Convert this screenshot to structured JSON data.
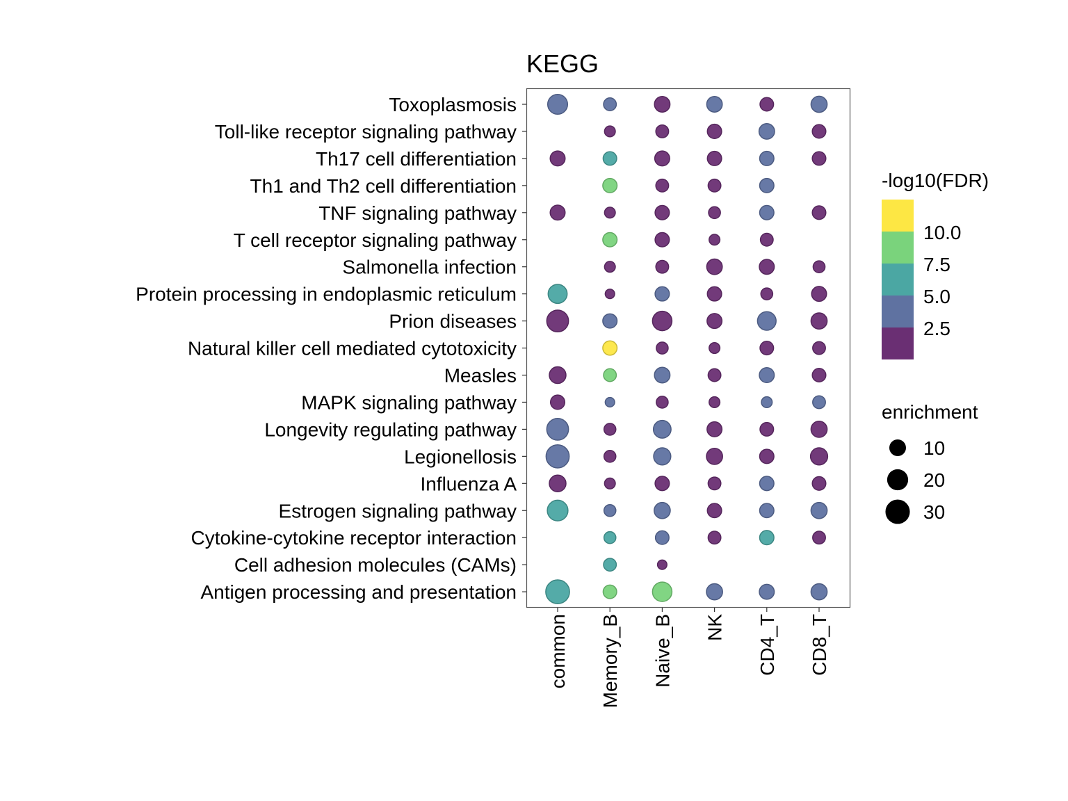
{
  "chart_data": {
    "type": "scatter",
    "subtype": "dot-plot",
    "title": "KEGG",
    "xlabel": "",
    "ylabel": "",
    "grid": false,
    "categories_x": [
      "common",
      "Memory_B",
      "Naive_B",
      "NK",
      "CD4_T",
      "CD8_T"
    ],
    "categories_y": [
      "Toxoplasmosis",
      "Toll-like receptor signaling pathway",
      "Th17 cell differentiation",
      "Th1 and Th2 cell differentiation",
      "TNF signaling pathway",
      "T cell receptor signaling pathway",
      "Salmonella infection",
      "Protein processing in endoplasmic reticulum",
      "Prion diseases",
      "Natural killer cell mediated cytotoxicity",
      "Measles",
      "MAPK signaling pathway",
      "Longevity regulating pathway",
      "Legionellosis",
      "Influenza A",
      "Estrogen signaling pathway",
      "Cytokine-cytokine receptor interaction",
      "Cell adhesion molecules (CAMs)",
      "Antigen processing and presentation"
    ],
    "points": [
      {
        "y": "Toxoplasmosis",
        "x": "common",
        "enrichment": 17,
        "neglog10FDR": 3.0
      },
      {
        "y": "Toxoplasmosis",
        "x": "Memory_B",
        "enrichment": 4,
        "neglog10FDR": 3.0
      },
      {
        "y": "Toxoplasmosis",
        "x": "Naive_B",
        "enrichment": 8,
        "neglog10FDR": 1.5
      },
      {
        "y": "Toxoplasmosis",
        "x": "NK",
        "enrichment": 8,
        "neglog10FDR": 3.0
      },
      {
        "y": "Toxoplasmosis",
        "x": "CD4_T",
        "enrichment": 5,
        "neglog10FDR": 1.5
      },
      {
        "y": "Toxoplasmosis",
        "x": "CD8_T",
        "enrichment": 9,
        "neglog10FDR": 3.0
      },
      {
        "y": "Toll-like receptor signaling pathway",
        "x": "Memory_B",
        "enrichment": 2,
        "neglog10FDR": 1.5
      },
      {
        "y": "Toll-like receptor signaling pathway",
        "x": "Naive_B",
        "enrichment": 4,
        "neglog10FDR": 1.5
      },
      {
        "y": "Toll-like receptor signaling pathway",
        "x": "NK",
        "enrichment": 6,
        "neglog10FDR": 1.5
      },
      {
        "y": "Toll-like receptor signaling pathway",
        "x": "CD4_T",
        "enrichment": 8,
        "neglog10FDR": 3.0
      },
      {
        "y": "Toll-like receptor signaling pathway",
        "x": "CD8_T",
        "enrichment": 5,
        "neglog10FDR": 1.5
      },
      {
        "y": "Th17 cell differentiation",
        "x": "common",
        "enrichment": 7,
        "neglog10FDR": 1.5
      },
      {
        "y": "Th17 cell differentiation",
        "x": "Memory_B",
        "enrichment": 5,
        "neglog10FDR": 5.5
      },
      {
        "y": "Th17 cell differentiation",
        "x": "Naive_B",
        "enrichment": 7,
        "neglog10FDR": 1.5
      },
      {
        "y": "Th17 cell differentiation",
        "x": "NK",
        "enrichment": 6,
        "neglog10FDR": 1.5
      },
      {
        "y": "Th17 cell differentiation",
        "x": "CD4_T",
        "enrichment": 6,
        "neglog10FDR": 3.0
      },
      {
        "y": "Th17 cell differentiation",
        "x": "CD8_T",
        "enrichment": 5,
        "neglog10FDR": 1.5
      },
      {
        "y": "Th1 and Th2 cell differentiation",
        "x": "Memory_B",
        "enrichment": 6,
        "neglog10FDR": 8.5
      },
      {
        "y": "Th1 and Th2 cell differentiation",
        "x": "Naive_B",
        "enrichment": 4,
        "neglog10FDR": 1.5
      },
      {
        "y": "Th1 and Th2 cell differentiation",
        "x": "NK",
        "enrichment": 4,
        "neglog10FDR": 1.5
      },
      {
        "y": "Th1 and Th2 cell differentiation",
        "x": "CD4_T",
        "enrichment": 6,
        "neglog10FDR": 3.0
      },
      {
        "y": "TNF signaling pathway",
        "x": "common",
        "enrichment": 7,
        "neglog10FDR": 1.5
      },
      {
        "y": "TNF signaling pathway",
        "x": "Memory_B",
        "enrichment": 2,
        "neglog10FDR": 1.5
      },
      {
        "y": "TNF signaling pathway",
        "x": "Naive_B",
        "enrichment": 6,
        "neglog10FDR": 1.5
      },
      {
        "y": "TNF signaling pathway",
        "x": "NK",
        "enrichment": 3,
        "neglog10FDR": 1.5
      },
      {
        "y": "TNF signaling pathway",
        "x": "CD4_T",
        "enrichment": 6,
        "neglog10FDR": 3.0
      },
      {
        "y": "TNF signaling pathway",
        "x": "CD8_T",
        "enrichment": 5,
        "neglog10FDR": 1.5
      },
      {
        "y": "T cell receptor signaling pathway",
        "x": "Memory_B",
        "enrichment": 6,
        "neglog10FDR": 8.5
      },
      {
        "y": "T cell receptor signaling pathway",
        "x": "Naive_B",
        "enrichment": 6,
        "neglog10FDR": 1.5
      },
      {
        "y": "T cell receptor signaling pathway",
        "x": "NK",
        "enrichment": 2,
        "neglog10FDR": 1.5
      },
      {
        "y": "T cell receptor signaling pathway",
        "x": "CD4_T",
        "enrichment": 4,
        "neglog10FDR": 1.5
      },
      {
        "y": "Salmonella infection",
        "x": "Memory_B",
        "enrichment": 2,
        "neglog10FDR": 1.5
      },
      {
        "y": "Salmonella infection",
        "x": "Naive_B",
        "enrichment": 4,
        "neglog10FDR": 1.5
      },
      {
        "y": "Salmonella infection",
        "x": "NK",
        "enrichment": 8,
        "neglog10FDR": 1.5
      },
      {
        "y": "Salmonella infection",
        "x": "CD4_T",
        "enrichment": 7,
        "neglog10FDR": 1.5
      },
      {
        "y": "Salmonella infection",
        "x": "CD8_T",
        "enrichment": 3,
        "neglog10FDR": 1.5
      },
      {
        "y": "Protein processing in endoplasmic reticulum",
        "x": "common",
        "enrichment": 15,
        "neglog10FDR": 5.5
      },
      {
        "y": "Protein processing in endoplasmic reticulum",
        "x": "Memory_B",
        "enrichment": 1,
        "neglog10FDR": 1.5
      },
      {
        "y": "Protein processing in endoplasmic reticulum",
        "x": "Naive_B",
        "enrichment": 6,
        "neglog10FDR": 3.0
      },
      {
        "y": "Protein processing in endoplasmic reticulum",
        "x": "NK",
        "enrichment": 6,
        "neglog10FDR": 1.5
      },
      {
        "y": "Protein processing in endoplasmic reticulum",
        "x": "CD4_T",
        "enrichment": 3,
        "neglog10FDR": 1.5
      },
      {
        "y": "Protein processing in endoplasmic reticulum",
        "x": "CD8_T",
        "enrichment": 7,
        "neglog10FDR": 1.5
      },
      {
        "y": "Prion diseases",
        "x": "common",
        "enrichment": 22,
        "neglog10FDR": 1.5
      },
      {
        "y": "Prion diseases",
        "x": "Memory_B",
        "enrichment": 6,
        "neglog10FDR": 3.0
      },
      {
        "y": "Prion diseases",
        "x": "Naive_B",
        "enrichment": 16,
        "neglog10FDR": 1.5
      },
      {
        "y": "Prion diseases",
        "x": "NK",
        "enrichment": 7,
        "neglog10FDR": 1.5
      },
      {
        "y": "Prion diseases",
        "x": "CD4_T",
        "enrichment": 14,
        "neglog10FDR": 3.0
      },
      {
        "y": "Prion diseases",
        "x": "CD8_T",
        "enrichment": 9,
        "neglog10FDR": 1.5
      },
      {
        "y": "Natural killer cell mediated cytotoxicity",
        "x": "Memory_B",
        "enrichment": 6,
        "neglog10FDR": 11.0
      },
      {
        "y": "Natural killer cell mediated cytotoxicity",
        "x": "Naive_B",
        "enrichment": 3,
        "neglog10FDR": 1.5
      },
      {
        "y": "Natural killer cell mediated cytotoxicity",
        "x": "NK",
        "enrichment": 2,
        "neglog10FDR": 1.5
      },
      {
        "y": "Natural killer cell mediated cytotoxicity",
        "x": "CD4_T",
        "enrichment": 5,
        "neglog10FDR": 1.5
      },
      {
        "y": "Natural killer cell mediated cytotoxicity",
        "x": "CD8_T",
        "enrichment": 4,
        "neglog10FDR": 1.5
      },
      {
        "y": "Measles",
        "x": "common",
        "enrichment": 10,
        "neglog10FDR": 1.5
      },
      {
        "y": "Measles",
        "x": "Memory_B",
        "enrichment": 4,
        "neglog10FDR": 8.5
      },
      {
        "y": "Measles",
        "x": "Naive_B",
        "enrichment": 8,
        "neglog10FDR": 3.0
      },
      {
        "y": "Measles",
        "x": "NK",
        "enrichment": 4,
        "neglog10FDR": 1.5
      },
      {
        "y": "Measles",
        "x": "CD4_T",
        "enrichment": 7,
        "neglog10FDR": 3.0
      },
      {
        "y": "Measles",
        "x": "CD8_T",
        "enrichment": 5,
        "neglog10FDR": 1.5
      },
      {
        "y": "MAPK signaling pathway",
        "x": "common",
        "enrichment": 6,
        "neglog10FDR": 1.5
      },
      {
        "y": "MAPK signaling pathway",
        "x": "Memory_B",
        "enrichment": 1,
        "neglog10FDR": 3.0
      },
      {
        "y": "MAPK signaling pathway",
        "x": "Naive_B",
        "enrichment": 3,
        "neglog10FDR": 1.5
      },
      {
        "y": "MAPK signaling pathway",
        "x": "NK",
        "enrichment": 2,
        "neglog10FDR": 1.5
      },
      {
        "y": "MAPK signaling pathway",
        "x": "CD4_T",
        "enrichment": 2,
        "neglog10FDR": 3.0
      },
      {
        "y": "MAPK signaling pathway",
        "x": "CD8_T",
        "enrichment": 4,
        "neglog10FDR": 3.0
      },
      {
        "y": "Longevity regulating pathway",
        "x": "common",
        "enrichment": 22,
        "neglog10FDR": 3.0
      },
      {
        "y": "Longevity regulating pathway",
        "x": "Memory_B",
        "enrichment": 3,
        "neglog10FDR": 1.5
      },
      {
        "y": "Longevity regulating pathway",
        "x": "Naive_B",
        "enrichment": 12,
        "neglog10FDR": 3.0
      },
      {
        "y": "Longevity regulating pathway",
        "x": "NK",
        "enrichment": 7,
        "neglog10FDR": 1.5
      },
      {
        "y": "Longevity regulating pathway",
        "x": "CD4_T",
        "enrichment": 5,
        "neglog10FDR": 1.5
      },
      {
        "y": "Longevity regulating pathway",
        "x": "CD8_T",
        "enrichment": 9,
        "neglog10FDR": 1.5
      },
      {
        "y": "Legionellosis",
        "x": "common",
        "enrichment": 26,
        "neglog10FDR": 3.0
      },
      {
        "y": "Legionellosis",
        "x": "Memory_B",
        "enrichment": 3,
        "neglog10FDR": 1.5
      },
      {
        "y": "Legionellosis",
        "x": "Naive_B",
        "enrichment": 11,
        "neglog10FDR": 3.0
      },
      {
        "y": "Legionellosis",
        "x": "NK",
        "enrichment": 9,
        "neglog10FDR": 1.5
      },
      {
        "y": "Legionellosis",
        "x": "CD4_T",
        "enrichment": 6,
        "neglog10FDR": 1.5
      },
      {
        "y": "Legionellosis",
        "x": "CD8_T",
        "enrichment": 11,
        "neglog10FDR": 1.5
      },
      {
        "y": "Influenza A",
        "x": "common",
        "enrichment": 10,
        "neglog10FDR": 1.5
      },
      {
        "y": "Influenza A",
        "x": "Memory_B",
        "enrichment": 2,
        "neglog10FDR": 1.5
      },
      {
        "y": "Influenza A",
        "x": "Naive_B",
        "enrichment": 6,
        "neglog10FDR": 1.5
      },
      {
        "y": "Influenza A",
        "x": "NK",
        "enrichment": 4,
        "neglog10FDR": 1.5
      },
      {
        "y": "Influenza A",
        "x": "CD4_T",
        "enrichment": 6,
        "neglog10FDR": 3.0
      },
      {
        "y": "Influenza A",
        "x": "CD8_T",
        "enrichment": 5,
        "neglog10FDR": 1.5
      },
      {
        "y": "Estrogen signaling pathway",
        "x": "common",
        "enrichment": 19,
        "neglog10FDR": 5.5
      },
      {
        "y": "Estrogen signaling pathway",
        "x": "Memory_B",
        "enrichment": 3,
        "neglog10FDR": 3.0
      },
      {
        "y": "Estrogen signaling pathway",
        "x": "Naive_B",
        "enrichment": 9,
        "neglog10FDR": 3.0
      },
      {
        "y": "Estrogen signaling pathway",
        "x": "NK",
        "enrichment": 6,
        "neglog10FDR": 1.5
      },
      {
        "y": "Estrogen signaling pathway",
        "x": "CD4_T",
        "enrichment": 6,
        "neglog10FDR": 3.0
      },
      {
        "y": "Estrogen signaling pathway",
        "x": "CD8_T",
        "enrichment": 9,
        "neglog10FDR": 3.0
      },
      {
        "y": "Cytokine-cytokine receptor interaction",
        "x": "Memory_B",
        "enrichment": 3,
        "neglog10FDR": 5.5
      },
      {
        "y": "Cytokine-cytokine receptor interaction",
        "x": "Naive_B",
        "enrichment": 5,
        "neglog10FDR": 3.0
      },
      {
        "y": "Cytokine-cytokine receptor interaction",
        "x": "NK",
        "enrichment": 4,
        "neglog10FDR": 1.5
      },
      {
        "y": "Cytokine-cytokine receptor interaction",
        "x": "CD4_T",
        "enrichment": 6,
        "neglog10FDR": 5.5
      },
      {
        "y": "Cytokine-cytokine receptor interaction",
        "x": "CD8_T",
        "enrichment": 4,
        "neglog10FDR": 1.5
      },
      {
        "y": "Cell adhesion molecules (CAMs)",
        "x": "Memory_B",
        "enrichment": 4,
        "neglog10FDR": 5.5
      },
      {
        "y": "Cell adhesion molecules (CAMs)",
        "x": "Naive_B",
        "enrichment": 1,
        "neglog10FDR": 1.5
      },
      {
        "y": "Antigen processing and presentation",
        "x": "common",
        "enrichment": 28,
        "neglog10FDR": 5.5
      },
      {
        "y": "Antigen processing and presentation",
        "x": "Memory_B",
        "enrichment": 5,
        "neglog10FDR": 8.5
      },
      {
        "y": "Antigen processing and presentation",
        "x": "Naive_B",
        "enrichment": 16,
        "neglog10FDR": 8.5
      },
      {
        "y": "Antigen processing and presentation",
        "x": "NK",
        "enrichment": 9,
        "neglog10FDR": 3.0
      },
      {
        "y": "Antigen processing and presentation",
        "x": "CD4_T",
        "enrichment": 7,
        "neglog10FDR": 3.0
      },
      {
        "y": "Antigen processing and presentation",
        "x": "CD8_T",
        "enrichment": 9,
        "neglog10FDR": 3.0
      }
    ],
    "color_legend": {
      "title": "-log10(FDR)",
      "placement": "right",
      "breaks": [
        "10.0",
        "7.5",
        "5.0",
        "2.5"
      ],
      "bins": [
        {
          "range": [
            10.0,
            12.5
          ],
          "color": "#fde744"
        },
        {
          "range": [
            7.5,
            10.0
          ],
          "color": "#7ad37c"
        },
        {
          "range": [
            5.0,
            7.5
          ],
          "color": "#4ba7a3"
        },
        {
          "range": [
            2.5,
            5.0
          ],
          "color": "#5f72a1"
        },
        {
          "range": [
            0.0,
            2.5
          ],
          "color": "#6a2f73"
        }
      ]
    },
    "size_legend": {
      "title": "enrichment",
      "placement": "right",
      "breaks": [
        10,
        20,
        30
      ],
      "labels": [
        "10",
        "20",
        "30"
      ]
    }
  }
}
